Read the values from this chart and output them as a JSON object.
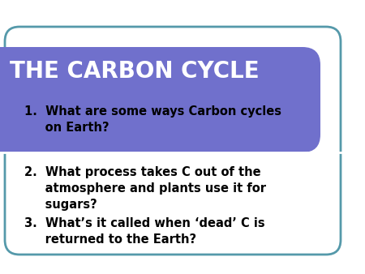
{
  "title": "THE CARBON CYCLE",
  "title_color": "#ffffff",
  "title_bg_color": "#7070cc",
  "background_color": "#ffffff",
  "border_color": "#5599aa",
  "separator_color": "#ffffff",
  "q1": "1.  What are some ways Carbon cycles\n     on Earth?",
  "q2": "2.  What process takes C out of the\n     atmosphere and plants use it for\n     sugars?",
  "q3": "3.  What’s it called when ‘dead’ C is\n     returned to the Earth?",
  "text_color": "#000000",
  "font_size_title": 20,
  "font_size_body": 10.5
}
